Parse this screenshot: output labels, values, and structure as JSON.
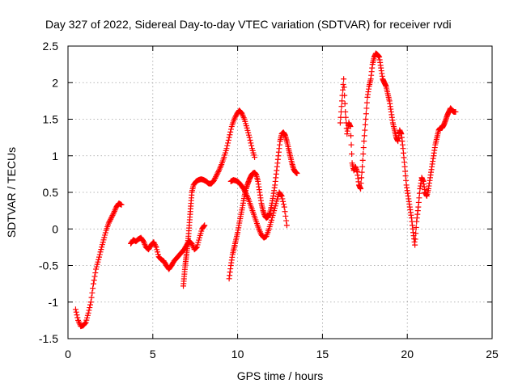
{
  "chart_data": {
    "type": "scatter",
    "title": "Day 327 of 2022, Sidereal Day-to-day VTEC variation (SDTVAR) for receiver rvdi",
    "xlabel": "GPS time / hours",
    "ylabel": "SDTVAR / TECUs",
    "xlim": [
      0,
      25
    ],
    "ylim": [
      -1.5,
      2.5
    ],
    "xticks": [
      "0",
      "5",
      "10",
      "15",
      "20",
      "25"
    ],
    "yticks": [
      "-1.5",
      "-1",
      "-0.5",
      "0",
      "0.5",
      "1",
      "1.5",
      "2",
      "2.5"
    ],
    "grid": true,
    "marker": "plus",
    "color": "#ff0000",
    "segments": [
      {
        "x": [
          0.45,
          0.6,
          0.75,
          0.9,
          1.05,
          1.2,
          1.35,
          1.5,
          1.65,
          1.8,
          1.95,
          2.1,
          2.25,
          2.4,
          2.55,
          2.7,
          2.85,
          3.0,
          3.15
        ],
        "y": [
          -1.1,
          -1.25,
          -1.33,
          -1.32,
          -1.28,
          -1.15,
          -1.0,
          -0.75,
          -0.55,
          -0.42,
          -0.28,
          -0.15,
          -0.02,
          0.08,
          0.15,
          0.22,
          0.3,
          0.35,
          0.33
        ]
      },
      {
        "x": [
          3.7,
          3.85,
          4.0,
          4.15,
          4.3,
          4.45,
          4.6,
          4.75,
          4.9,
          5.05,
          5.2,
          5.35,
          5.5,
          5.65,
          5.8,
          5.95,
          6.1,
          6.25,
          6.4,
          6.55,
          6.7,
          6.85,
          7.0,
          7.15,
          7.3,
          7.45,
          7.6,
          7.75,
          7.9,
          8.05
        ],
        "y": [
          -0.2,
          -0.15,
          -0.17,
          -0.14,
          -0.12,
          -0.17,
          -0.25,
          -0.28,
          -0.22,
          -0.18,
          -0.25,
          -0.38,
          -0.42,
          -0.44,
          -0.5,
          -0.55,
          -0.5,
          -0.44,
          -0.4,
          -0.36,
          -0.32,
          -0.28,
          -0.22,
          -0.17,
          -0.2,
          -0.28,
          -0.25,
          -0.12,
          0.0,
          0.05
        ]
      },
      {
        "x": [
          6.8,
          6.85,
          6.9,
          6.95,
          7.0,
          7.05,
          7.1,
          7.15,
          7.2,
          7.25,
          7.3,
          7.4,
          7.55,
          7.7,
          7.85,
          8.0,
          8.15,
          8.3,
          8.45,
          8.6,
          8.75,
          8.9,
          9.05,
          9.2,
          9.35,
          9.5,
          9.65,
          9.8,
          9.95,
          10.1,
          10.25,
          10.4,
          10.55,
          10.7,
          10.85,
          11.0
        ],
        "y": [
          -0.78,
          -0.65,
          -0.52,
          -0.42,
          -0.32,
          -0.22,
          -0.1,
          0.05,
          0.2,
          0.35,
          0.5,
          0.6,
          0.65,
          0.67,
          0.68,
          0.67,
          0.65,
          0.62,
          0.62,
          0.66,
          0.73,
          0.8,
          0.88,
          0.98,
          1.1,
          1.25,
          1.4,
          1.5,
          1.57,
          1.62,
          1.58,
          1.5,
          1.38,
          1.25,
          1.1,
          0.98
        ]
      },
      {
        "x": [
          9.5,
          9.6,
          9.7,
          9.8,
          9.9,
          10.0,
          10.1,
          10.2,
          10.3,
          10.4,
          10.5,
          10.6,
          10.7,
          10.8,
          10.9,
          11.0,
          11.1,
          11.2,
          11.3,
          11.4,
          11.5,
          11.6,
          11.7,
          11.8,
          11.9,
          12.0,
          12.1,
          12.2,
          12.3,
          12.4,
          12.5,
          12.6,
          12.7,
          12.8,
          12.9,
          13.0,
          13.1,
          13.2,
          13.3,
          13.4,
          13.5
        ],
        "y": [
          -0.68,
          -0.5,
          -0.35,
          -0.25,
          -0.15,
          -0.05,
          0.08,
          0.2,
          0.32,
          0.45,
          0.55,
          0.62,
          0.68,
          0.73,
          0.76,
          0.77,
          0.74,
          0.65,
          0.5,
          0.35,
          0.25,
          0.18,
          0.15,
          0.17,
          0.22,
          0.32,
          0.45,
          0.6,
          0.8,
          1.0,
          1.2,
          1.3,
          1.32,
          1.28,
          1.2,
          1.1,
          1.0,
          0.9,
          0.82,
          0.78,
          0.76
        ]
      },
      {
        "x": [
          9.6,
          9.75,
          9.9,
          10.05,
          10.2,
          10.35,
          10.5,
          10.65,
          10.8,
          10.95,
          11.1,
          11.25,
          11.4,
          11.55,
          11.7,
          11.85,
          12.0,
          12.15,
          12.3,
          12.45,
          12.6,
          12.75,
          12.9
        ],
        "y": [
          0.65,
          0.67,
          0.66,
          0.64,
          0.6,
          0.55,
          0.48,
          0.4,
          0.3,
          0.2,
          0.1,
          0.0,
          -0.08,
          -0.12,
          -0.1,
          0.0,
          0.12,
          0.25,
          0.38,
          0.5,
          0.45,
          0.3,
          0.05
        ]
      },
      {
        "x": [
          16.05,
          16.15,
          16.25,
          16.35,
          16.45,
          16.55,
          16.65,
          16.75,
          16.85,
          16.95,
          17.05,
          17.15,
          17.25,
          17.35,
          17.45,
          17.55,
          17.65,
          17.75,
          17.85,
          17.95,
          18.05,
          18.15,
          18.25,
          18.35,
          18.45,
          18.55,
          18.65,
          18.75,
          18.85,
          18.95,
          19.05,
          19.15,
          19.25,
          19.35,
          19.45,
          19.55,
          19.65,
          19.75,
          19.85,
          19.95,
          20.05,
          20.15,
          20.25,
          20.35,
          20.45,
          20.55,
          20.65,
          20.75,
          20.85,
          20.95,
          21.05,
          21.15,
          21.25,
          21.35,
          21.45,
          21.55,
          21.65,
          21.75,
          21.85,
          21.95,
          22.05,
          22.15,
          22.25,
          22.35,
          22.45,
          22.55,
          22.65,
          22.75,
          22.85
        ],
        "y": [
          1.45,
          1.75,
          2.05,
          1.6,
          1.3,
          1.45,
          1.4,
          0.9,
          0.8,
          0.85,
          0.78,
          0.6,
          0.55,
          0.85,
          1.2,
          1.5,
          1.8,
          1.95,
          2.05,
          2.25,
          2.35,
          2.4,
          2.38,
          2.35,
          2.2,
          2.05,
          2.0,
          1.95,
          1.85,
          1.75,
          1.6,
          1.45,
          1.35,
          1.25,
          1.2,
          1.35,
          1.3,
          1.1,
          0.85,
          0.6,
          0.45,
          0.3,
          0.15,
          -0.05,
          -0.22,
          0.1,
          0.3,
          0.55,
          0.7,
          0.65,
          0.5,
          0.45,
          0.55,
          0.7,
          0.85,
          1.0,
          1.15,
          1.25,
          1.35,
          1.38,
          1.38,
          1.42,
          1.48,
          1.55,
          1.6,
          1.65,
          1.62,
          1.6,
          1.6
        ]
      }
    ]
  }
}
